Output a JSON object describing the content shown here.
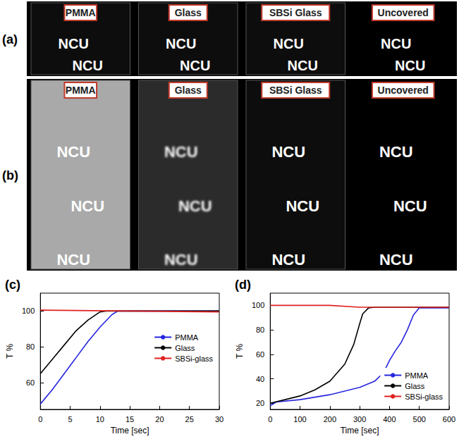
{
  "panels": [
    {
      "letter": "(a)",
      "samples": [
        {
          "label": "PMMA",
          "texts": [
            "NCU",
            "NCU"
          ]
        },
        {
          "label": "Glass",
          "texts": [
            "NCU",
            "NCU"
          ]
        },
        {
          "label": "SBSi Glass",
          "texts": [
            "NCU",
            "NCU"
          ]
        },
        {
          "label": "Uncovered",
          "texts": [
            "NCU",
            "NCU"
          ]
        }
      ]
    },
    {
      "letter": "(b)",
      "samples": [
        {
          "label": "PMMA",
          "texts": [
            "NCU",
            "NCU",
            "NCU"
          ]
        },
        {
          "label": "Glass",
          "texts": [
            "NCU",
            "NCU",
            "NCU"
          ]
        },
        {
          "label": "SBSi Glass",
          "texts": [
            "NCU",
            "NCU",
            "NCU"
          ]
        },
        {
          "label": "Uncovered",
          "texts": [
            "NCU",
            "NCU",
            "NCU"
          ]
        }
      ]
    }
  ],
  "chart_data": [
    {
      "letter": "(c)",
      "type": "line",
      "x_label": "Time [sec]",
      "y_label": "T %",
      "xlim": [
        0,
        30
      ],
      "xticks": [
        0,
        5,
        10,
        15,
        20,
        25,
        30
      ],
      "ylim": [
        45,
        110
      ],
      "yticks": [
        60,
        80,
        100
      ],
      "legend": "right",
      "series": [
        {
          "name": "PMMA",
          "color": "#2525e0",
          "x": [
            0,
            2,
            4,
            6,
            8,
            10,
            12,
            13,
            15,
            30
          ],
          "values": [
            48,
            56,
            65,
            74,
            83,
            91,
            98,
            100,
            100,
            100
          ]
        },
        {
          "name": "Glass",
          "color": "#000000",
          "x": [
            0,
            2,
            4,
            6,
            8,
            10,
            11,
            30
          ],
          "values": [
            65,
            73,
            81,
            89,
            95,
            99.5,
            100,
            100
          ]
        },
        {
          "name": "SBSi-glass",
          "color": "#e02020",
          "x": [
            0,
            15,
            30
          ],
          "values": [
            100.5,
            100,
            99.5
          ]
        }
      ]
    },
    {
      "letter": "(d)",
      "type": "line",
      "x_label": "Time [sec]",
      "y_label": "T %",
      "xlim": [
        0,
        600
      ],
      "xticks": [
        0,
        100,
        200,
        300,
        400,
        500,
        600
      ],
      "ylim": [
        15,
        110
      ],
      "yticks": [
        20,
        40,
        60,
        80,
        100
      ],
      "legend": "lower right",
      "series": [
        {
          "name": "PMMA",
          "color": "#2525e0",
          "x": [
            0,
            20,
            100,
            200,
            300,
            350,
            380,
            400,
            420,
            440,
            460,
            480,
            500,
            600
          ],
          "values": [
            18,
            21,
            23,
            27,
            33,
            38,
            45,
            55,
            63,
            70,
            80,
            92,
            98,
            98
          ]
        },
        {
          "name": "Glass",
          "color": "#000000",
          "x": [
            0,
            50,
            100,
            150,
            200,
            250,
            280,
            300,
            310,
            330,
            350,
            600
          ],
          "values": [
            20,
            23,
            26,
            31,
            38,
            52,
            68,
            85,
            93,
            98,
            98.5,
            98.5
          ]
        },
        {
          "name": "SBSi-glass",
          "color": "#e02020",
          "x": [
            0,
            200,
            300,
            600
          ],
          "values": [
            100,
            100,
            98.5,
            98.5
          ]
        }
      ]
    }
  ]
}
